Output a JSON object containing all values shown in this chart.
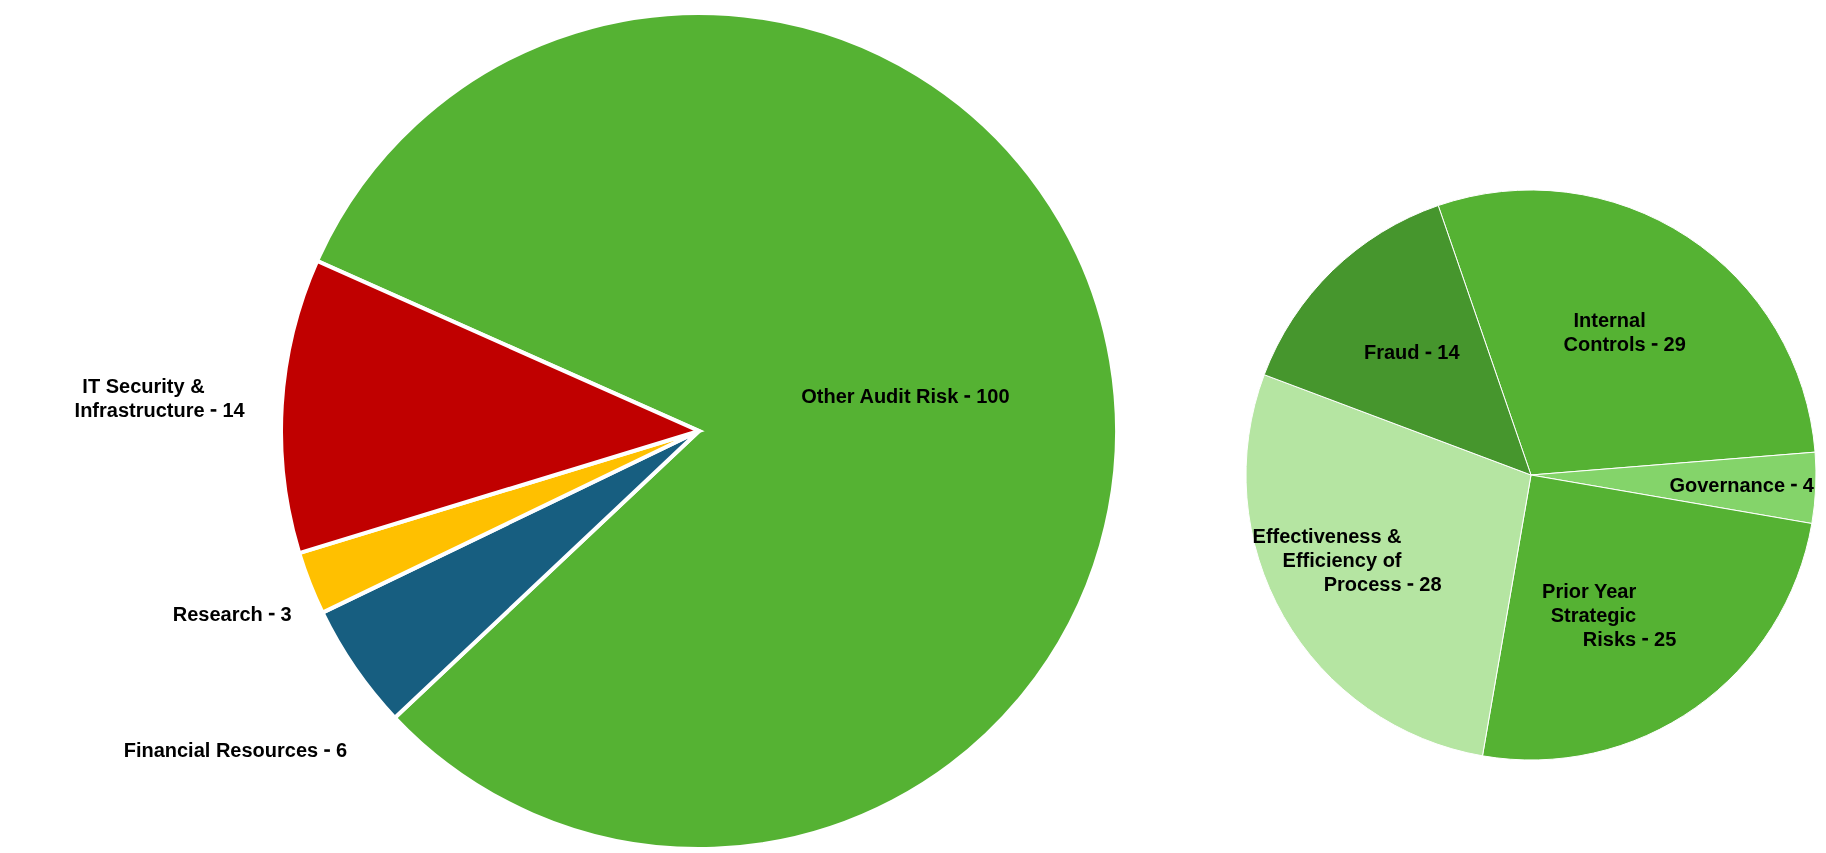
{
  "chart_data": [
    {
      "type": "pie",
      "categories": [
        "Other Audit Risk",
        "Financial Resources",
        "Research",
        "IT Security & Infrastructure"
      ],
      "values": [
        100,
        6,
        3,
        14
      ],
      "colors": [
        "#55b233",
        "#175e80",
        "#ffc000",
        "#c00000"
      ],
      "data_labels": true
    },
    {
      "type": "pie",
      "categories": [
        "Internal Controls",
        "Governance",
        "Prior Year Strategic Risks",
        "Effectiveness & Efficiency of Process",
        "Fraud"
      ],
      "values": [
        29,
        4,
        25,
        28,
        14
      ],
      "colors": [
        "#55b233",
        "#84d46a",
        "#55b233",
        "#b5e5a2",
        "#46962d"
      ],
      "data_labels": true
    }
  ]
}
